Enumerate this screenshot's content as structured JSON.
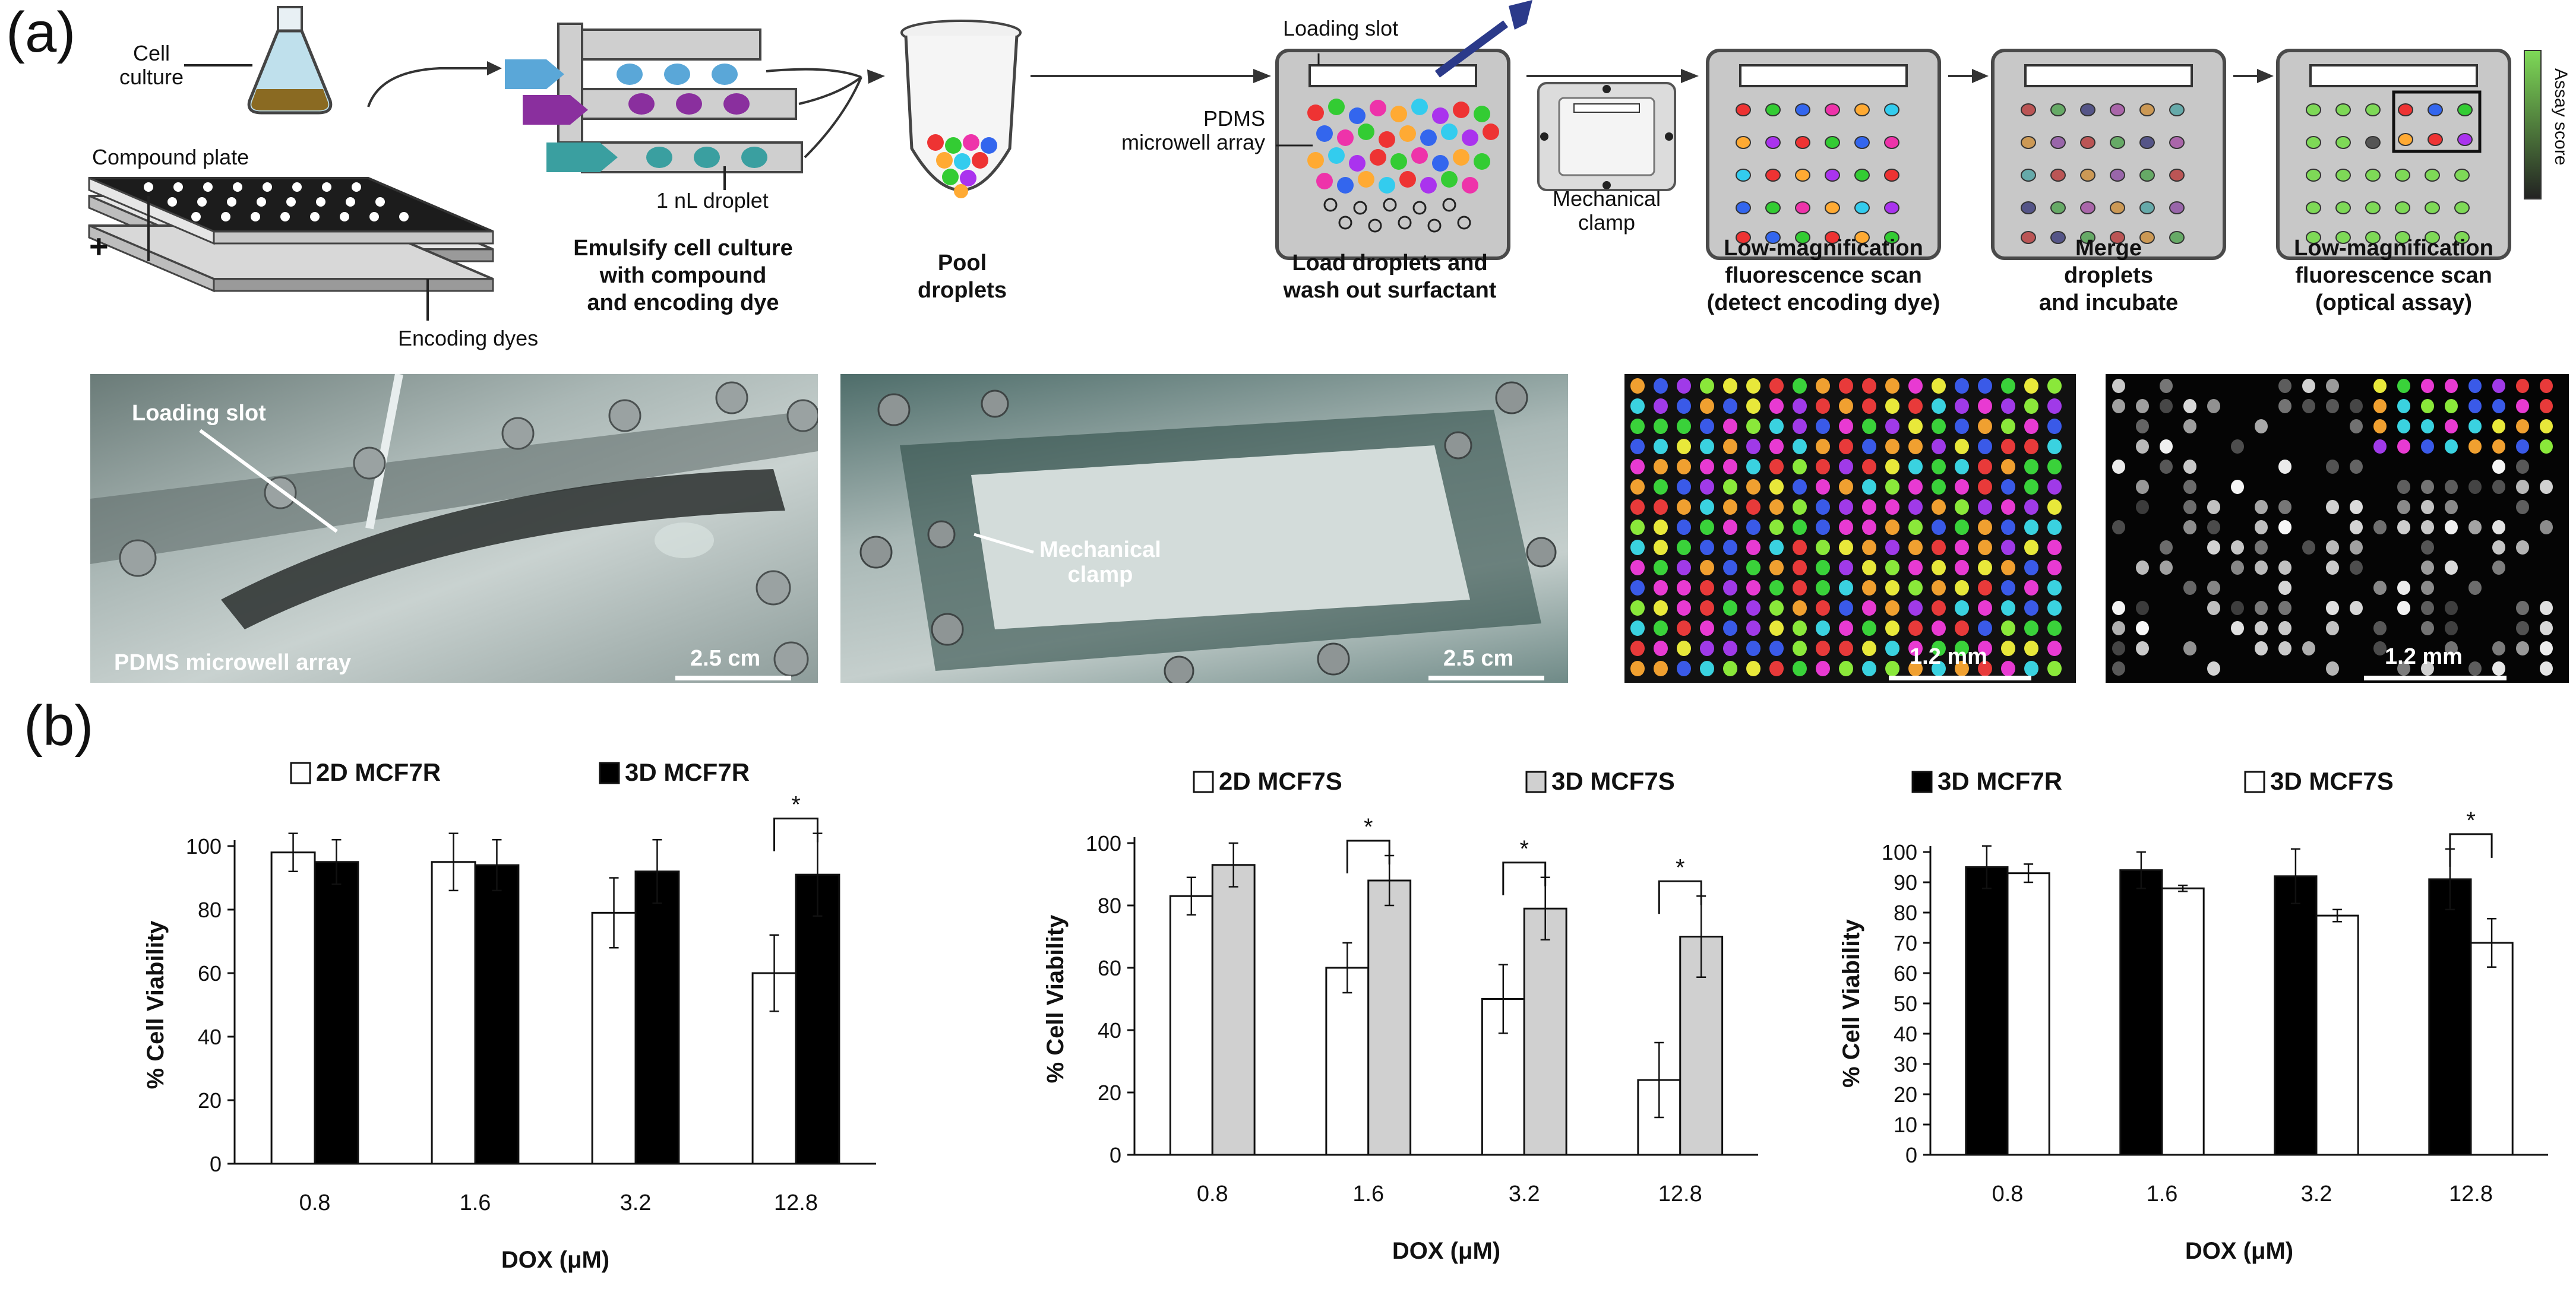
{
  "panel_labels": {
    "a": "(a)",
    "b": "(b)"
  },
  "workflow": {
    "cell_culture": "Cell\nculture",
    "compound_plate": "Compound plate",
    "encoding_dyes": "Encoding dyes",
    "plus": "+",
    "droplet_size": "1 nL droplet",
    "loading_slot": "Loading slot",
    "pdms_array": "PDMS\nmicrowell array",
    "mechanical_clamp": "Mechanical\nclamp",
    "assay_score": "Assay score",
    "steps": [
      "Emulsify cell culture\nwith compound\nand encoding dye",
      "Pool\ndroplets",
      "Load droplets and\nwash out surfactant",
      "Low-magnification\nfluorescence scan\n(detect encoding dye)",
      "Merge\ndroplets\nand incubate",
      "Low-magnification\nfluorescence scan\n(optical assay)"
    ],
    "colors": {
      "blue_channel": "#5aa7d8",
      "purple_channel": "#8a2f9e",
      "teal_channel": "#3a9fa0",
      "device_gray": "#c8c8c8",
      "device_border": "#4a4a4a",
      "green_score": "#7ed957"
    }
  },
  "photos": [
    {
      "label": "Loading slot",
      "sub": "PDMS microwell array",
      "scale": "2.5 cm"
    },
    {
      "label": "Mechanical\nclamp",
      "scale": "2.5 cm"
    },
    {
      "scale": "1.2 mm"
    },
    {
      "scale": "1.2 mm"
    }
  ],
  "chart_data": [
    {
      "type": "bar",
      "categories": [
        "0.8",
        "1.6",
        "3.2",
        "12.8"
      ],
      "xlabel": "DOX (μM)",
      "ylabel": "% Cell Viability",
      "ylim": [
        0,
        100
      ],
      "yticks": [
        "0",
        "20",
        "40",
        "60",
        "80",
        "100"
      ],
      "series": [
        {
          "name": "2D MCF7R",
          "fill": "#ffffff",
          "values": [
            98,
            95,
            79,
            60
          ],
          "errors": [
            6,
            9,
            11,
            12
          ]
        },
        {
          "name": "3D  MCF7R",
          "fill": "#000000",
          "values": [
            95,
            94,
            92,
            91
          ],
          "errors": [
            7,
            8,
            10,
            13
          ]
        }
      ],
      "significance": [
        {
          "category": "12.8",
          "label": "*"
        }
      ]
    },
    {
      "type": "bar",
      "categories": [
        "0.8",
        "1.6",
        "3.2",
        "12.8"
      ],
      "xlabel": "DOX (μM)",
      "ylabel": "% Cell Viability",
      "ylim": [
        0,
        100
      ],
      "yticks": [
        "0",
        "20",
        "40",
        "60",
        "80",
        "100"
      ],
      "series": [
        {
          "name": "2D  MCF7S",
          "fill": "#ffffff",
          "values": [
            83,
            60,
            50,
            24
          ],
          "errors": [
            6,
            8,
            11,
            12
          ]
        },
        {
          "name": "3D MCF7S",
          "fill": "#d0d0d0",
          "values": [
            93,
            88,
            79,
            70
          ],
          "errors": [
            7,
            8,
            10,
            13
          ]
        }
      ],
      "significance": [
        {
          "category": "1.6",
          "label": "*"
        },
        {
          "category": "3.2",
          "label": "*"
        },
        {
          "category": "12.8",
          "label": "*"
        }
      ]
    },
    {
      "type": "bar",
      "categories": [
        "0.8",
        "1.6",
        "3.2",
        "12.8"
      ],
      "xlabel": "DOX (μM)",
      "ylabel": "% Cell Viability",
      "ylim": [
        0,
        100
      ],
      "yticks": [
        "0",
        "10",
        "20",
        "30",
        "40",
        "50",
        "60",
        "70",
        "80",
        "90",
        "100"
      ],
      "series": [
        {
          "name": "3D MCF7R",
          "fill": "#000000",
          "values": [
            95,
            94,
            92,
            91
          ],
          "errors": [
            7,
            6,
            9,
            10
          ]
        },
        {
          "name": "3D MCF7S",
          "fill": "#ffffff",
          "values": [
            93,
            88,
            79,
            70
          ],
          "errors": [
            3,
            1,
            2,
            8
          ]
        }
      ],
      "significance": [
        {
          "category": "12.8",
          "label": "*"
        }
      ]
    }
  ]
}
